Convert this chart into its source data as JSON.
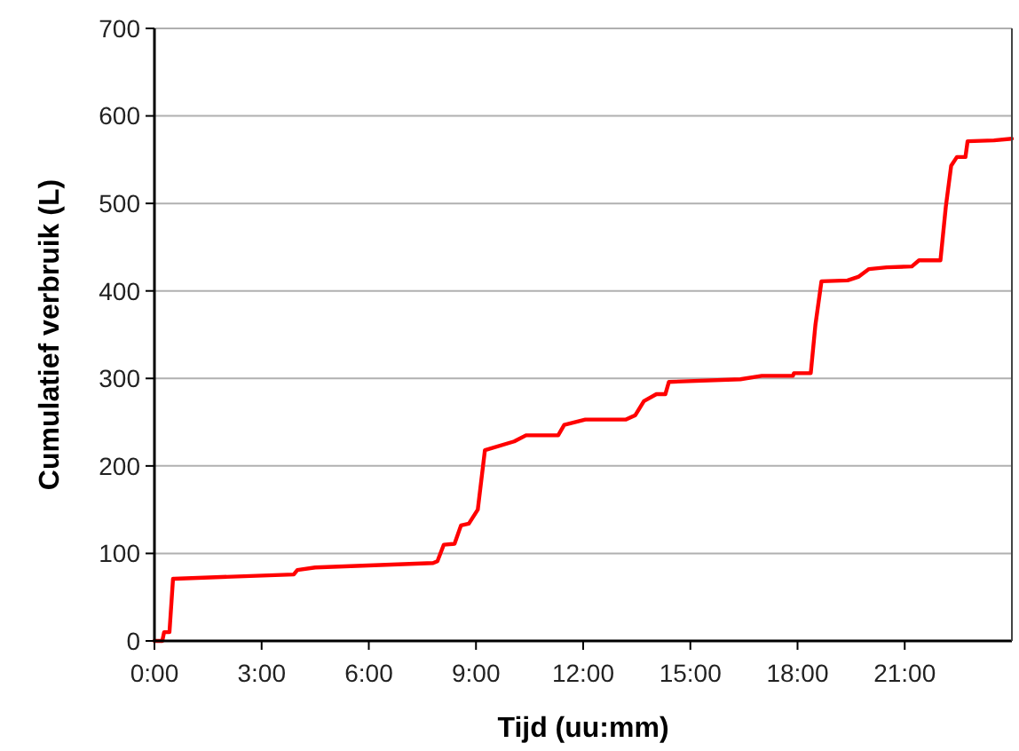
{
  "chart_data": {
    "type": "line",
    "xlabel": "Tijd (uu:mm)",
    "ylabel": "Cumulatief verbruik (L)",
    "xlim": [
      0,
      24
    ],
    "ylim": [
      0,
      700
    ],
    "xticks": [
      {
        "value": 0,
        "label": "0:00"
      },
      {
        "value": 3,
        "label": "3:00"
      },
      {
        "value": 6,
        "label": "6:00"
      },
      {
        "value": 9,
        "label": "9:00"
      },
      {
        "value": 12,
        "label": "12:00"
      },
      {
        "value": 15,
        "label": "15:00"
      },
      {
        "value": 18,
        "label": "18:00"
      },
      {
        "value": 21,
        "label": "21:00"
      }
    ],
    "yticks": [
      0,
      100,
      200,
      300,
      400,
      500,
      600,
      700
    ],
    "grid": "y",
    "marker": "none",
    "line_style": "solid",
    "series": [
      {
        "color": "#ff0000",
        "x": [
          0,
          0.22,
          0.27,
          0.42,
          0.52,
          0.55,
          3.9,
          4.0,
          4.5,
          7.8,
          7.92,
          8.1,
          8.4,
          8.58,
          8.8,
          9.05,
          9.25,
          10.07,
          10.4,
          11.3,
          11.47,
          12.06,
          13.2,
          13.46,
          13.7,
          14.05,
          14.3,
          14.4,
          16.4,
          17.0,
          17.87,
          17.9,
          18.37,
          18.5,
          18.67,
          19.4,
          19.7,
          20.0,
          20.5,
          21.2,
          21.4,
          22.0,
          22.15,
          22.3,
          22.46,
          22.7,
          22.76,
          23.5,
          24.0
        ],
        "values": [
          0,
          0,
          10,
          10,
          71,
          71,
          76,
          81,
          84,
          89,
          91,
          110,
          111,
          132,
          134,
          150,
          218,
          228,
          235,
          235,
          247,
          253,
          253,
          258,
          274,
          282,
          282,
          296,
          299,
          303,
          303,
          306,
          306,
          361,
          411,
          412,
          416,
          425,
          427,
          428,
          435,
          435,
          496,
          543,
          553,
          553,
          571,
          572,
          574
        ]
      }
    ]
  }
}
